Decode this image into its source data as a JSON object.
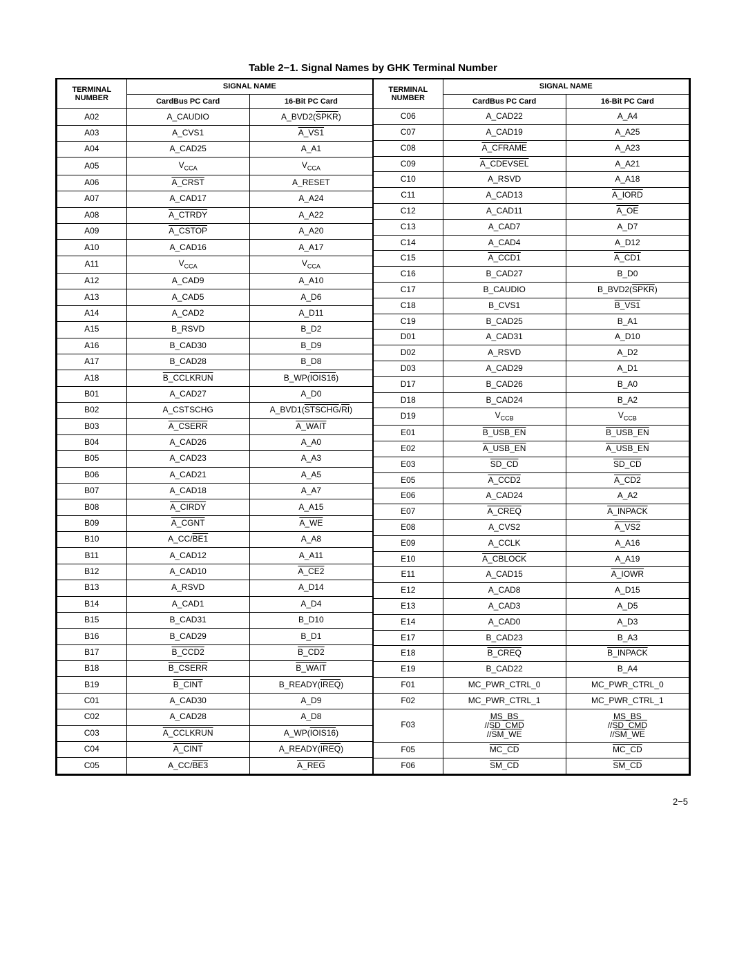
{
  "title": "Table 2−1.  Signal Names by GHK Terminal Number",
  "page_number": "2−5",
  "headers": {
    "terminal_number": "TERMINAL NUMBER",
    "signal_name": "SIGNAL NAME",
    "cardbus": "CardBus PC Card",
    "pc16": "16-Bit PC Card"
  },
  "colors": {
    "text": "#000000",
    "bg": "#ffffff",
    "border": "#000000"
  },
  "left_rows": [
    {
      "t": "A02",
      "c": "A_CAUDIO",
      "p": "A_BVD2(<ov>SPKR</ov>)"
    },
    {
      "t": "A03",
      "c": "A_CVS1",
      "p": "<ov>A_VS1</ov>"
    },
    {
      "t": "A04",
      "c": "A_CAD25",
      "p": "A_A1"
    },
    {
      "t": "A05",
      "c": "V<sub>CCA</sub>",
      "p": "V<sub>CCA</sub>"
    },
    {
      "t": "A06",
      "c": "<ov>A_CRST</ov>",
      "p": "A_RESET"
    },
    {
      "t": "A07",
      "c": "A_CAD17",
      "p": "A_A24"
    },
    {
      "t": "A08",
      "c": "<ov>A_CTRDY</ov>",
      "p": "A_A22"
    },
    {
      "t": "A09",
      "c": "<ov>A_CSTOP</ov>",
      "p": "A_A20"
    },
    {
      "t": "A10",
      "c": "A_CAD16",
      "p": "A_A17"
    },
    {
      "t": "A11",
      "c": "V<sub>CCA</sub>",
      "p": "V<sub>CCA</sub>"
    },
    {
      "t": "A12",
      "c": "A_CAD9",
      "p": "A_A10"
    },
    {
      "t": "A13",
      "c": "A_CAD5",
      "p": "A_D6"
    },
    {
      "t": "A14",
      "c": "A_CAD2",
      "p": "A_D11"
    },
    {
      "t": "A15",
      "c": "B_RSVD",
      "p": "B_D2"
    },
    {
      "t": "A16",
      "c": "B_CAD30",
      "p": "B_D9"
    },
    {
      "t": "A17",
      "c": "B_CAD28",
      "p": "B_D8"
    },
    {
      "t": "A18",
      "c": "<ov>B_CCLKRUN</ov>",
      "p": "B_WP(<ov>IOIS16</ov>)"
    },
    {
      "t": "B01",
      "c": "A_CAD27",
      "p": "A_D0"
    },
    {
      "t": "B02",
      "c": "A_CSTSCHG",
      "p": "A_BVD1(<ov>STSCHG</ov>/<ov>RI</ov>)"
    },
    {
      "t": "B03",
      "c": "<ov>A_CSERR</ov>",
      "p": "<ov>A_WAIT</ov>"
    },
    {
      "t": "B04",
      "c": "A_CAD26",
      "p": "A_A0"
    },
    {
      "t": "B05",
      "c": "A_CAD23",
      "p": "A_A3"
    },
    {
      "t": "B06",
      "c": "A_CAD21",
      "p": "A_A5"
    },
    {
      "t": "B07",
      "c": "A_CAD18",
      "p": "A_A7"
    },
    {
      "t": "B08",
      "c": "<ov>A_CIRDY</ov>",
      "p": "A_A15"
    },
    {
      "t": "B09",
      "c": "<ov>A_CGNT</ov>",
      "p": "<ov>A_WE</ov>"
    },
    {
      "t": "B10",
      "c": "A_CC/<ov>BE1</ov>",
      "p": "A_A8"
    },
    {
      "t": "B11",
      "c": "A_CAD12",
      "p": "A_A11"
    },
    {
      "t": "B12",
      "c": "A_CAD10",
      "p": "<ov>A_CE2</ov>"
    },
    {
      "t": "B13",
      "c": "A_RSVD",
      "p": "A_D14"
    },
    {
      "t": "B14",
      "c": "A_CAD1",
      "p": "A_D4"
    },
    {
      "t": "B15",
      "c": "B_CAD31",
      "p": "B_D10"
    },
    {
      "t": "B16",
      "c": "B_CAD29",
      "p": "B_D1"
    },
    {
      "t": "B17",
      "c": "<ov>B_CCD2</ov>",
      "p": "<ov>B_CD2</ov>"
    },
    {
      "t": "B18",
      "c": "<ov>B_CSERR</ov>",
      "p": "<ov>B_WAIT</ov>"
    },
    {
      "t": "B19",
      "c": "<ov>B_CINT</ov>",
      "p": "B_READY(<ov>IREQ</ov>)"
    },
    {
      "t": "C01",
      "c": "A_CAD30",
      "p": "A_D9"
    },
    {
      "t": "C02",
      "c": "A_CAD28",
      "p": "A_D8"
    },
    {
      "t": "C03",
      "c": "<ov>A_CCLKRUN</ov>",
      "p": "A_WP(<ov>IOIS16</ov>)"
    },
    {
      "t": "C04",
      "c": "<ov>A_CINT</ov>",
      "p": "A_READY(<ov>IREQ</ov>)"
    },
    {
      "t": "C05",
      "c": "A_CC/<ov>BE3</ov>",
      "p": "<ov>A_REG</ov>"
    }
  ],
  "right_rows": [
    {
      "t": "C06",
      "c": "A_CAD22",
      "p": "A_A4"
    },
    {
      "t": "C07",
      "c": "A_CAD19",
      "p": "A_A25"
    },
    {
      "t": "C08",
      "c": "<ov>A_CFRAME</ov>",
      "p": "A_A23"
    },
    {
      "t": "C09",
      "c": "<ov>A_CDEVSEL</ov>",
      "p": "A_A21"
    },
    {
      "t": "C10",
      "c": "A_RSVD",
      "p": "A_A18"
    },
    {
      "t": "C11",
      "c": "A_CAD13",
      "p": "<ov>A_IORD</ov>"
    },
    {
      "t": "C12",
      "c": "A_CAD11",
      "p": "<ov>A_OE</ov>"
    },
    {
      "t": "C13",
      "c": "A_CAD7",
      "p": "A_D7"
    },
    {
      "t": "C14",
      "c": "A_CAD4",
      "p": "A_D12"
    },
    {
      "t": "C15",
      "c": "<ov>A_CCD1</ov>",
      "p": "<ov>A_CD1</ov>"
    },
    {
      "t": "C16",
      "c": "B_CAD27",
      "p": "B_D0"
    },
    {
      "t": "C17",
      "c": "B_CAUDIO",
      "p": "B_BVD2(<ov>SPKR</ov>)"
    },
    {
      "t": "C18",
      "c": "B_CVS1",
      "p": "<ov>B_VS1</ov>"
    },
    {
      "t": "C19",
      "c": "B_CAD25",
      "p": "B_A1"
    },
    {
      "t": "D01",
      "c": "A_CAD31",
      "p": "A_D10"
    },
    {
      "t": "D02",
      "c": "A_RSVD",
      "p": "A_D2"
    },
    {
      "t": "D03",
      "c": "A_CAD29",
      "p": "A_D1"
    },
    {
      "t": "D17",
      "c": "B_CAD26",
      "p": "B_A0"
    },
    {
      "t": "D18",
      "c": "B_CAD24",
      "p": "B_A2"
    },
    {
      "t": "D19",
      "c": "V<sub>CCB</sub>",
      "p": "V<sub>CCB</sub>"
    },
    {
      "t": "E01",
      "c": "<ov>B_USB_EN</ov>",
      "p": "<ov>B_USB_EN</ov>"
    },
    {
      "t": "E02",
      "c": "<ov>A_USB_EN</ov>",
      "p": "<ov>A_USB_EN</ov>"
    },
    {
      "t": "E03",
      "c": "<ov>SD_CD</ov>",
      "p": "<ov>SD_CD</ov>"
    },
    {
      "t": "E05",
      "c": "<ov>A_CCD2</ov>",
      "p": "<ov>A_CD2</ov>"
    },
    {
      "t": "E06",
      "c": "A_CAD24",
      "p": "A_A2"
    },
    {
      "t": "E07",
      "c": "<ov>A_CREQ</ov>",
      "p": "<ov>A_INPACK</ov>"
    },
    {
      "t": "E08",
      "c": "A_CVS2",
      "p": "<ov>A_VS2</ov>"
    },
    {
      "t": "E09",
      "c": "A_CCLK",
      "p": "A_A16"
    },
    {
      "t": "E10",
      "c": "<ov>A_CBLOCK</ov>",
      "p": "A_A19"
    },
    {
      "t": "E11",
      "c": "A_CAD15",
      "p": "<ov>A_IOWR</ov>"
    },
    {
      "t": "E12",
      "c": "A_CAD8",
      "p": "A_D15"
    },
    {
      "t": "E13",
      "c": "A_CAD3",
      "p": "A_D5"
    },
    {
      "t": "E14",
      "c": "A_CAD0",
      "p": "A_D3"
    },
    {
      "t": "E17",
      "c": "B_CAD23",
      "p": "B_A3"
    },
    {
      "t": "E18",
      "c": "<ov>B_CREQ</ov>",
      "p": "<ov>B_INPACK</ov>"
    },
    {
      "t": "E19",
      "c": "B_CAD22",
      "p": "B_A4"
    },
    {
      "t": "F01",
      "c": "MC_PWR_CTRL_0",
      "p": "MC_PWR_CTRL_0"
    },
    {
      "t": "F02",
      "c": "MC_PWR_CTRL_1",
      "p": "MC_PWR_CTRL_1"
    },
    {
      "t": "F03",
      "c": "MS_BS<br>//<ov>SD_CMD</ov><br>//<ov>SM_WE</ov>",
      "p": "MS_BS<br>//<ov>SD_CMD</ov><br>//<ov>SM_WE</ov>",
      "multi": true
    },
    {
      "t": "F05",
      "c": "<ov>MC_CD</ov>",
      "p": "<ov>MC_CD</ov>"
    },
    {
      "t": "F06",
      "c": "<ov>SM_CD</ov>",
      "p": "<ov>SM_CD</ov>"
    }
  ]
}
